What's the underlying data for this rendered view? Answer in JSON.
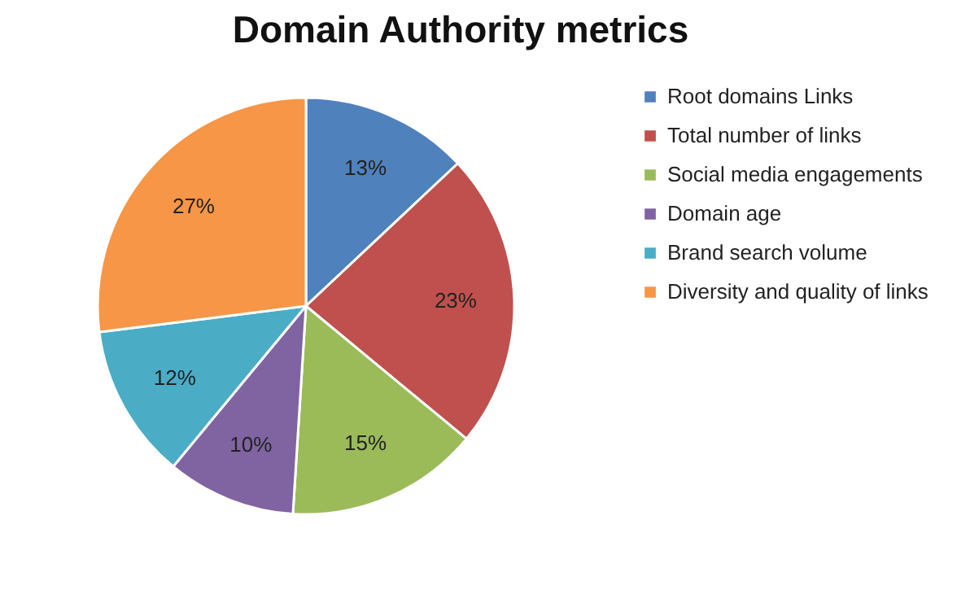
{
  "chart_data": {
    "type": "pie",
    "title": "Domain Authority metrics",
    "categories": [
      "Root domains Links",
      "Total number of links",
      "Social media engagements",
      "Domain age",
      "Brand search volume",
      "Diversity and quality of links"
    ],
    "values": [
      13,
      23,
      15,
      10,
      12,
      27
    ],
    "colors": [
      "#4f81bd",
      "#c0504d",
      "#9bbb59",
      "#8064a2",
      "#4bacc6",
      "#f79646"
    ],
    "value_labels": [
      "13%",
      "23%",
      "15%",
      "10%",
      "12%",
      "27%"
    ],
    "legend": "right"
  }
}
